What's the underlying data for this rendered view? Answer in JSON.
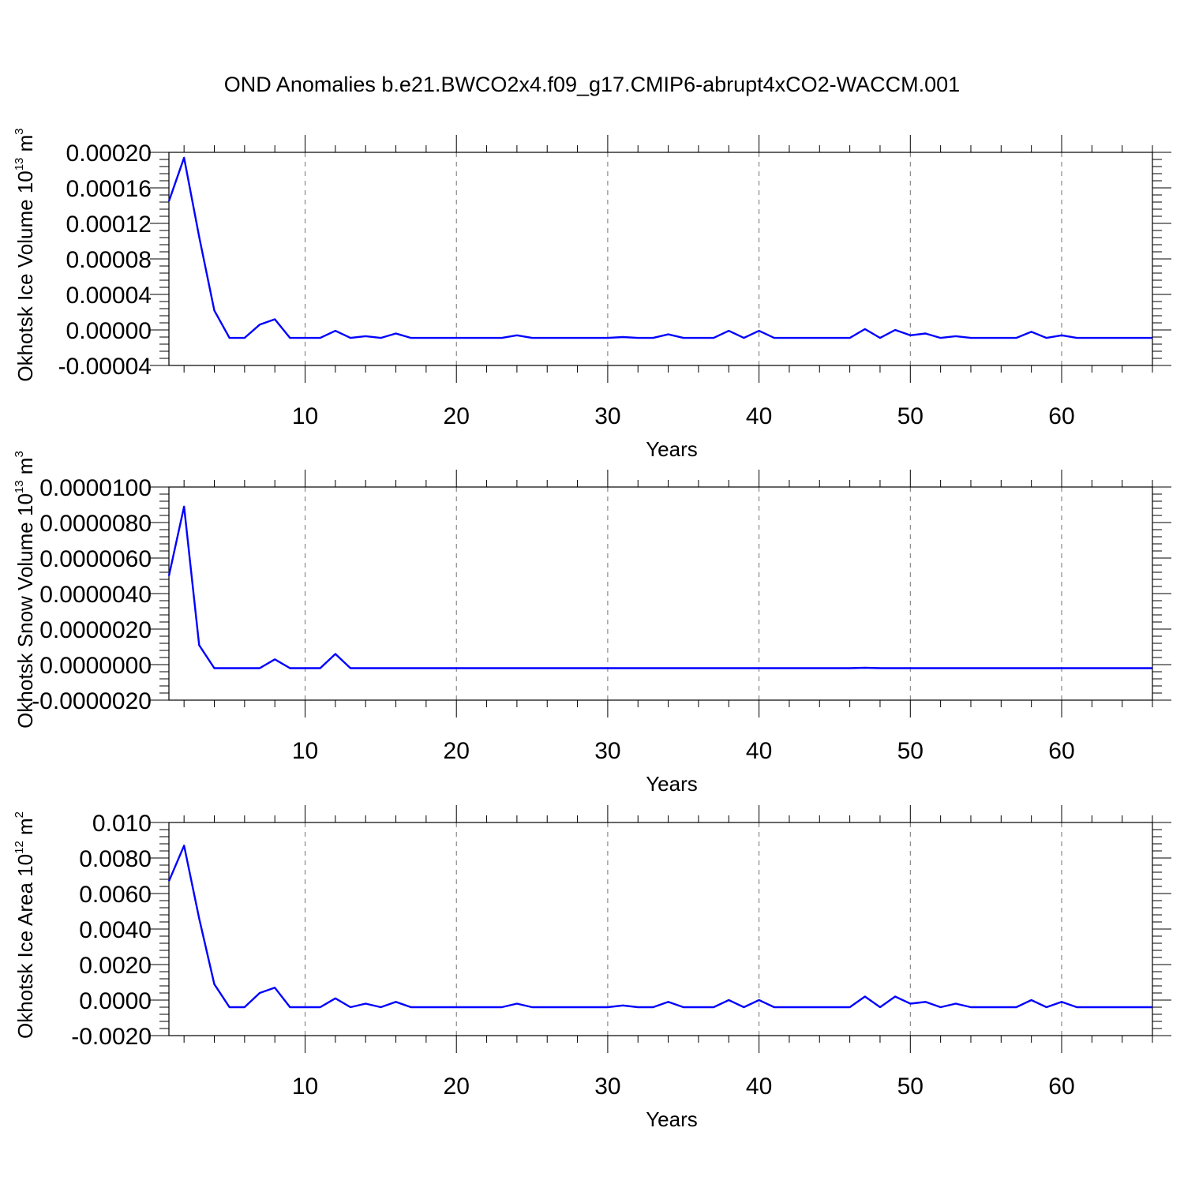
{
  "figure": {
    "title": "OND Anomalies b.e21.BWCO2x4.f09_g17.CMIP6-abrupt4xCO2-WACCM.001"
  },
  "chart_data": [
    {
      "type": "line",
      "xlabel": "Years",
      "ylabel_main": "Okhotsk Ice Volume 10",
      "ylabel_exp": "13",
      "ylabel_unit": " m",
      "ylabel_unit_exp": "3",
      "xlim": [
        1,
        66
      ],
      "ylim": [
        -4e-05,
        0.0002
      ],
      "xticks": [
        10,
        20,
        30,
        40,
        50,
        60
      ],
      "xtick_labels": [
        "10",
        "20",
        "30",
        "40",
        "50",
        "60"
      ],
      "yticks": [
        -4e-05,
        0,
        4e-05,
        8e-05,
        0.00012,
        0.00016,
        0.0002
      ],
      "ytick_labels": [
        "-0.00004",
        "0.00000",
        "0.00004",
        "0.00008",
        "0.00012",
        "0.00016",
        "0.00020"
      ],
      "grid": "vertical-dashed",
      "series": [
        {
          "color": "#0000ff",
          "x": [
            1,
            2,
            3,
            4,
            5,
            6,
            7,
            8,
            9,
            10,
            11,
            12,
            13,
            14,
            15,
            16,
            17,
            18,
            19,
            20,
            21,
            22,
            23,
            24,
            25,
            26,
            27,
            28,
            29,
            30,
            31,
            32,
            33,
            34,
            35,
            36,
            37,
            38,
            39,
            40,
            41,
            42,
            43,
            44,
            45,
            46,
            47,
            48,
            49,
            50,
            51,
            52,
            53,
            54,
            55,
            56,
            57,
            58,
            59,
            60,
            61,
            62,
            63,
            64,
            65,
            66
          ],
          "y": [
            0.000145,
            0.000194,
            0.000105,
            2.2e-05,
            -9e-06,
            -9e-06,
            6e-06,
            1.2e-05,
            -9e-06,
            -9e-06,
            -9e-06,
            -1e-06,
            -9e-06,
            -7e-06,
            -9e-06,
            -4e-06,
            -9e-06,
            -9e-06,
            -9e-06,
            -9e-06,
            -9e-06,
            -9e-06,
            -9e-06,
            -6e-06,
            -9e-06,
            -9e-06,
            -9e-06,
            -9e-06,
            -9e-06,
            -9e-06,
            -8e-06,
            -9e-06,
            -9e-06,
            -5e-06,
            -9e-06,
            -9e-06,
            -9e-06,
            -1e-06,
            -9e-06,
            -1e-06,
            -9e-06,
            -9e-06,
            -9e-06,
            -9e-06,
            -9e-06,
            -9e-06,
            1e-06,
            -9e-06,
            0.0,
            -6e-06,
            -4e-06,
            -9e-06,
            -7e-06,
            -9e-06,
            -9e-06,
            -9e-06,
            -9e-06,
            -2e-06,
            -9e-06,
            -6e-06,
            -9e-06,
            -9e-06,
            -9e-06,
            -9e-06,
            -9e-06,
            -9e-06
          ]
        }
      ]
    },
    {
      "type": "line",
      "xlabel": "Years",
      "ylabel_main": "Okhotsk Snow Volume 10",
      "ylabel_exp": "13",
      "ylabel_unit": " m",
      "ylabel_unit_exp": "3",
      "xlim": [
        1,
        66
      ],
      "ylim": [
        -2e-06,
        1e-05
      ],
      "xticks": [
        10,
        20,
        30,
        40,
        50,
        60
      ],
      "xtick_labels": [
        "10",
        "20",
        "30",
        "40",
        "50",
        "60"
      ],
      "yticks": [
        -2e-06,
        0,
        2e-06,
        4e-06,
        6e-06,
        8e-06,
        1e-05
      ],
      "ytick_labels": [
        "-0.0000020",
        "0.0000000",
        "0.0000020",
        "0.0000040",
        "0.0000060",
        "0.0000080",
        "0.0000100"
      ],
      "grid": "vertical-dashed",
      "series": [
        {
          "color": "#0000ff",
          "x": [
            1,
            2,
            3,
            4,
            5,
            6,
            7,
            8,
            9,
            10,
            11,
            12,
            13,
            14,
            15,
            16,
            17,
            18,
            19,
            20,
            21,
            22,
            23,
            24,
            25,
            26,
            27,
            28,
            29,
            30,
            31,
            32,
            33,
            34,
            35,
            36,
            37,
            38,
            39,
            40,
            41,
            42,
            43,
            44,
            45,
            46,
            47,
            48,
            49,
            50,
            51,
            52,
            53,
            54,
            55,
            56,
            57,
            58,
            59,
            60,
            61,
            62,
            63,
            64,
            65,
            66
          ],
          "y": [
            5e-06,
            8.9e-06,
            1.1e-06,
            -2e-07,
            -2e-07,
            -2e-07,
            -2e-07,
            3e-07,
            -2e-07,
            -2e-07,
            -2e-07,
            6e-07,
            -2e-07,
            -2e-07,
            -2e-07,
            -2e-07,
            -2e-07,
            -2e-07,
            -2e-07,
            -2e-07,
            -2e-07,
            -2e-07,
            -2e-07,
            -2e-07,
            -2e-07,
            -2e-07,
            -2e-07,
            -2e-07,
            -2e-07,
            -2e-07,
            -2e-07,
            -2e-07,
            -2e-07,
            -2e-07,
            -2e-07,
            -2e-07,
            -2e-07,
            -2e-07,
            -2e-07,
            -2e-07,
            -2e-07,
            -2e-07,
            -2e-07,
            -2e-07,
            -2e-07,
            -2e-07,
            -1.8e-07,
            -2e-07,
            -2e-07,
            -2e-07,
            -2e-07,
            -2e-07,
            -2e-07,
            -2e-07,
            -2e-07,
            -2e-07,
            -2e-07,
            -2e-07,
            -2e-07,
            -2e-07,
            -2e-07,
            -2e-07,
            -2e-07,
            -2e-07,
            -2e-07,
            -2e-07
          ]
        }
      ]
    },
    {
      "type": "line",
      "xlabel": "Years",
      "ylabel_main": "Okhotsk Ice Area 10",
      "ylabel_exp": "12",
      "ylabel_unit": " m",
      "ylabel_unit_exp": "2",
      "xlim": [
        1,
        66
      ],
      "ylim": [
        -0.002,
        0.01
      ],
      "xticks": [
        10,
        20,
        30,
        40,
        50,
        60
      ],
      "xtick_labels": [
        "10",
        "20",
        "30",
        "40",
        "50",
        "60"
      ],
      "yticks": [
        -0.002,
        0,
        0.002,
        0.004,
        0.006,
        0.008,
        0.01
      ],
      "ytick_labels": [
        "-0.0020",
        "0.0000",
        "0.0020",
        "0.0040",
        "0.0060",
        "0.0080",
        "0.010"
      ],
      "grid": "vertical-dashed",
      "series": [
        {
          "color": "#0000ff",
          "x": [
            1,
            2,
            3,
            4,
            5,
            6,
            7,
            8,
            9,
            10,
            11,
            12,
            13,
            14,
            15,
            16,
            17,
            18,
            19,
            20,
            21,
            22,
            23,
            24,
            25,
            26,
            27,
            28,
            29,
            30,
            31,
            32,
            33,
            34,
            35,
            36,
            37,
            38,
            39,
            40,
            41,
            42,
            43,
            44,
            45,
            46,
            47,
            48,
            49,
            50,
            51,
            52,
            53,
            54,
            55,
            56,
            57,
            58,
            59,
            60,
            61,
            62,
            63,
            64,
            65,
            66
          ],
          "y": [
            0.0067,
            0.0087,
            0.0046,
            0.0009,
            -0.0004,
            -0.0004,
            0.0004,
            0.0007,
            -0.0004,
            -0.0004,
            -0.0004,
            0.0001,
            -0.0004,
            -0.0002,
            -0.0004,
            -0.0001,
            -0.0004,
            -0.0004,
            -0.0004,
            -0.0004,
            -0.0004,
            -0.0004,
            -0.0004,
            -0.0002,
            -0.0004,
            -0.0004,
            -0.0004,
            -0.0004,
            -0.0004,
            -0.0004,
            -0.0003,
            -0.0004,
            -0.0004,
            -0.0001,
            -0.0004,
            -0.0004,
            -0.0004,
            0.0,
            -0.0004,
            0.0,
            -0.0004,
            -0.0004,
            -0.0004,
            -0.0004,
            -0.0004,
            -0.0004,
            0.0002,
            -0.0004,
            0.0002,
            -0.0002,
            -0.0001,
            -0.0004,
            -0.0002,
            -0.0004,
            -0.0004,
            -0.0004,
            -0.0004,
            0.0,
            -0.0004,
            -0.0001,
            -0.0004,
            -0.0004,
            -0.0004,
            -0.0004,
            -0.0004,
            -0.0004
          ]
        }
      ]
    }
  ]
}
